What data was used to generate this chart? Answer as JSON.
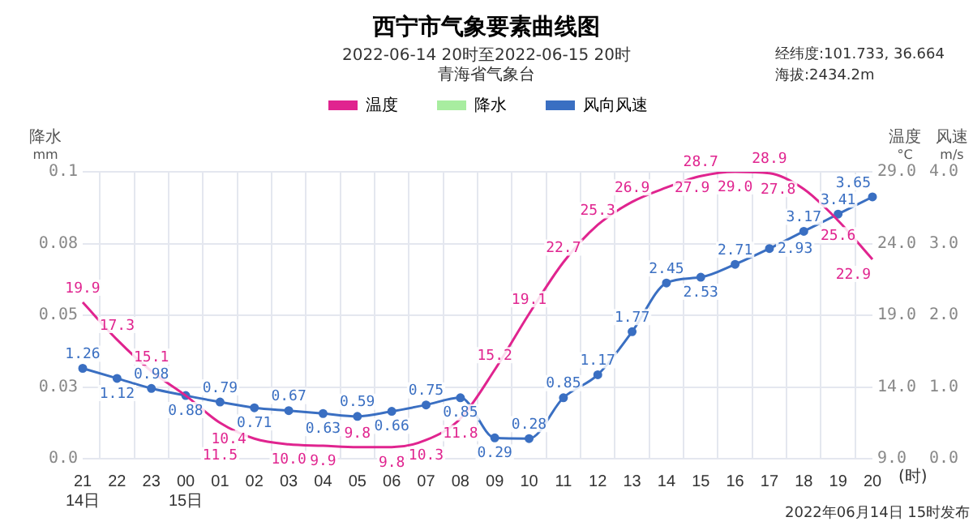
{
  "chart_data": {
    "type": "line",
    "title": "西宁市气象要素曲线图",
    "subtitle": "2022-06-14 20时至2022-06-15 20时",
    "annotations": [
      "青海省气象台",
      "经纬度:101.733, 36.664",
      "海拔:2434.2m",
      "(时)",
      "2022年06月14日 15时发布"
    ],
    "categories": [
      "21\n14日",
      "22",
      "23",
      "00\n15日",
      "01",
      "02",
      "03",
      "04",
      "05",
      "06",
      "07",
      "08",
      "09",
      "10",
      "11",
      "12",
      "13",
      "14",
      "15",
      "16",
      "17",
      "18",
      "19",
      "20"
    ],
    "ylabel": "降水\nmm",
    "y2label": "温度\n°C",
    "y3label": "风速\nm/s",
    "ylim": [
      0,
      0.1
    ],
    "yticks": [
      {
        "value": 0,
        "label": "0.0"
      },
      {
        "value": 0.025,
        "label": "0.03"
      },
      0.05,
      {
        "value": 0.075,
        "label": "0.08"
      },
      0.1
    ],
    "y2lim": [
      9,
      29
    ],
    "y2ticks": [
      {
        "value": 9,
        "label": "9.0"
      },
      {
        "value": 14,
        "label": "14.0"
      },
      {
        "value": 19,
        "label": "19.0"
      },
      {
        "value": 24,
        "label": "24.0"
      },
      {
        "value": 29,
        "label": "29.0"
      }
    ],
    "y3lim": [
      0,
      4
    ],
    "y3ticks": [
      {
        "value": 0,
        "label": "0.0"
      },
      {
        "value": 1,
        "label": "1.0"
      },
      {
        "value": 2,
        "label": "2.0"
      },
      {
        "value": 3,
        "label": "3.0"
      },
      {
        "value": 4,
        "label": "4.0"
      }
    ],
    "grid": true,
    "legend": "top",
    "series": [
      {
        "name": "温度",
        "axis": "y2",
        "color": "#e0248f",
        "marker": "none",
        "values": [
          19.9,
          17.3,
          15.1,
          13.4,
          11.5,
          10.4,
          10.0,
          9.9,
          9.8,
          9.8,
          10.3,
          11.8,
          15.2,
          19.1,
          22.7,
          25.3,
          26.9,
          27.9,
          28.7,
          29.0,
          28.9,
          27.8,
          25.6,
          22.9
        ],
        "value_labels": [
          "19.9",
          "17.3",
          "15.1",
          null,
          "11.5",
          "10.4",
          "10.0",
          "9.9",
          "9.8",
          "9.8",
          "10.3",
          "11.8",
          "15.2",
          "19.1",
          "22.7",
          "25.3",
          "26.9",
          "27.9",
          "28.7",
          "29.0",
          "28.9",
          "27.8",
          "25.6",
          "22.9"
        ]
      },
      {
        "name": "降水",
        "type": "bar",
        "axis": "y",
        "color": "#a8eda0",
        "values": [
          0,
          0,
          0,
          0,
          0,
          0,
          0,
          0,
          0,
          0,
          0,
          0,
          0,
          0,
          0,
          0,
          0,
          0,
          0,
          0,
          0,
          0,
          0,
          0
        ]
      },
      {
        "name": "风向风速",
        "axis": "y3",
        "color": "#3a6fc2",
        "marker": "circle",
        "values": [
          1.26,
          1.12,
          0.98,
          0.88,
          0.79,
          0.71,
          0.67,
          0.63,
          0.59,
          0.66,
          0.75,
          0.85,
          0.29,
          0.28,
          0.85,
          1.17,
          1.77,
          2.45,
          2.53,
          2.71,
          2.93,
          3.17,
          3.41,
          3.65
        ],
        "value_labels": [
          "1.26",
          "1.12",
          "0.98",
          "0.88",
          "0.79",
          "0.71",
          "0.67",
          "0.63",
          "0.59",
          "0.66",
          "0.75",
          "0.85",
          "0.29",
          "0.28",
          "0.85",
          "1.17",
          "1.77",
          "2.45",
          "2.53",
          "2.71",
          "2.93",
          "3.17",
          "3.41",
          "3.65"
        ]
      }
    ]
  }
}
